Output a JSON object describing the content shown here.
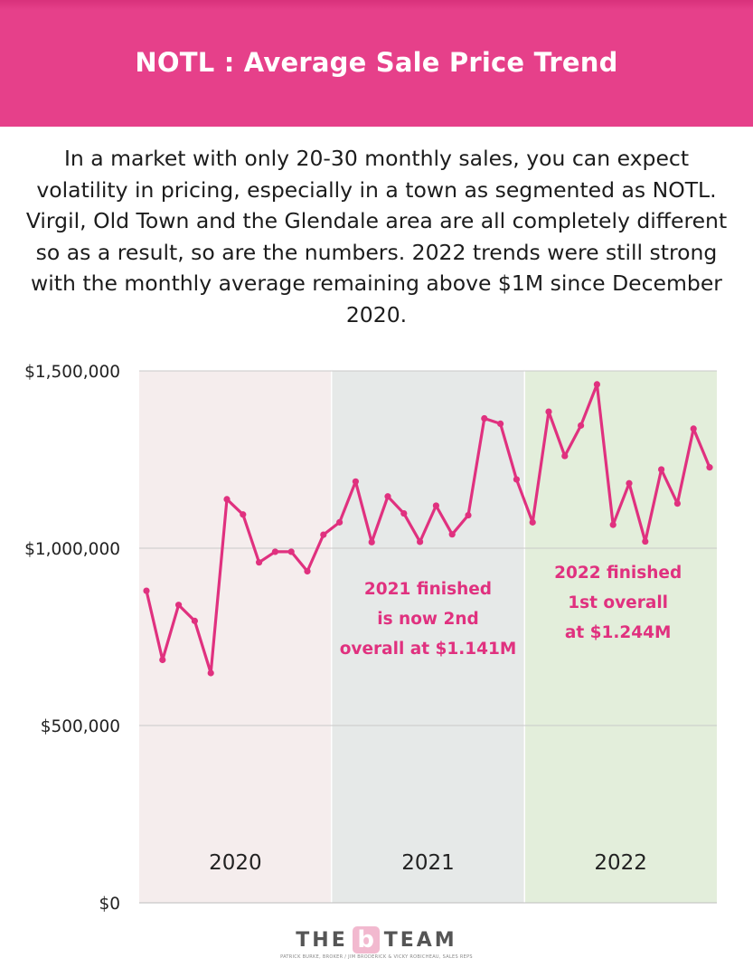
{
  "header": {
    "title": "NOTL : Average Sale Price Trend"
  },
  "intro": {
    "text": "In a market with only 20-30 monthly sales, you can expect volatility in pricing, especially in a town as segmented as NOTL. Virgil, Old Town and the Glendale area are all completely different so as a result, so are the numbers. 2022 trends were still strong with the monthly average remaining above $1M since December 2020."
  },
  "colors": {
    "header": "#e6408a",
    "line": "#e0317f",
    "annotation": "#e0317f",
    "band_2020": "#f5eded",
    "band_2021": "#e6e9e8",
    "band_2022": "#e3eedb"
  },
  "chart_data": {
    "type": "line",
    "series": [
      {
        "values": [
          880000,
          685000,
          840000,
          795000,
          648000,
          1138000,
          1095000,
          960000,
          990000,
          990000,
          935000,
          1038000,
          1073000,
          1188000,
          1017000,
          1146000,
          1098000,
          1018000,
          1120000,
          1039000,
          1093000,
          1366000,
          1351000,
          1194000,
          1073000,
          1385000,
          1260000,
          1346000,
          1462000,
          1066000,
          1183000,
          1019000,
          1222000,
          1126000,
          1337000,
          1228000
        ]
      }
    ],
    "ylim": [
      0,
      1500000
    ],
    "y_ticks": [
      {
        "value": 0,
        "label": "$0"
      },
      {
        "value": 500000,
        "label": "$500,000"
      },
      {
        "value": 1000000,
        "label": "$1,000,000"
      },
      {
        "value": 1500000,
        "label": "$1,500,000"
      }
    ],
    "grid": true,
    "periods": [
      {
        "label": "2020",
        "start": 0,
        "end": 12
      },
      {
        "label": "2021",
        "start": 12,
        "end": 24
      },
      {
        "label": "2022",
        "start": 24,
        "end": 36
      }
    ],
    "annotations": [
      {
        "period": 1,
        "lines": [
          "2021 finished",
          "is now 2nd",
          "overall at $1.141M"
        ]
      },
      {
        "period": 2,
        "lines": [
          "2022 finished",
          "1st overall",
          "at $1.244M"
        ]
      }
    ]
  },
  "footer": {
    "logo_left": "THE",
    "logo_mid": "b",
    "logo_right": "TEAM",
    "tagline": "PATRICK BURKE, BROKER / JIM BRODERICK & VICKY ROBICHEAU, SALES REPS"
  }
}
